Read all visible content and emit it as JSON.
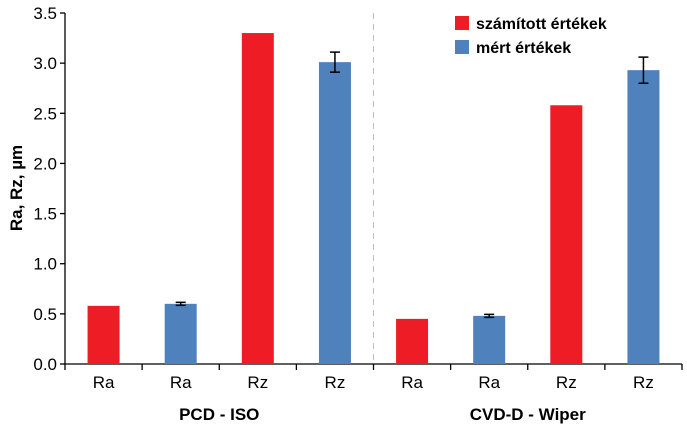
{
  "chart_data": {
    "type": "bar",
    "ylabel": "Ra, Rz, µm",
    "ylim": [
      0,
      3.5
    ],
    "yticks": [
      "0.0",
      "0.5",
      "1.0",
      "1.5",
      "2.0",
      "2.5",
      "3.0",
      "3.5"
    ],
    "grid": false,
    "legend_position": "top-right",
    "groups": [
      {
        "label": "PCD - ISO",
        "bars": [
          {
            "category": "Ra",
            "series": "számított értékek",
            "value": 0.58
          },
          {
            "category": "Ra",
            "series": "mért értékek",
            "value": 0.6,
            "error": 0.015
          },
          {
            "category": "Rz",
            "series": "számított értékek",
            "value": 3.3
          },
          {
            "category": "Rz",
            "series": "mért értékek",
            "value": 3.01,
            "error": 0.1
          }
        ]
      },
      {
        "label": "CVD-D - Wiper",
        "bars": [
          {
            "category": "Ra",
            "series": "számított értékek",
            "value": 0.45
          },
          {
            "category": "Ra",
            "series": "mért értékek",
            "value": 0.48,
            "error": 0.015
          },
          {
            "category": "Rz",
            "series": "számított értékek",
            "value": 2.58
          },
          {
            "category": "Rz",
            "series": "mért értékek",
            "value": 2.93,
            "error": 0.13
          }
        ]
      }
    ],
    "series": [
      {
        "name": "számított értékek",
        "color": "#ee1c25"
      },
      {
        "name": "mért értékek",
        "color": "#4f81bd"
      }
    ]
  }
}
